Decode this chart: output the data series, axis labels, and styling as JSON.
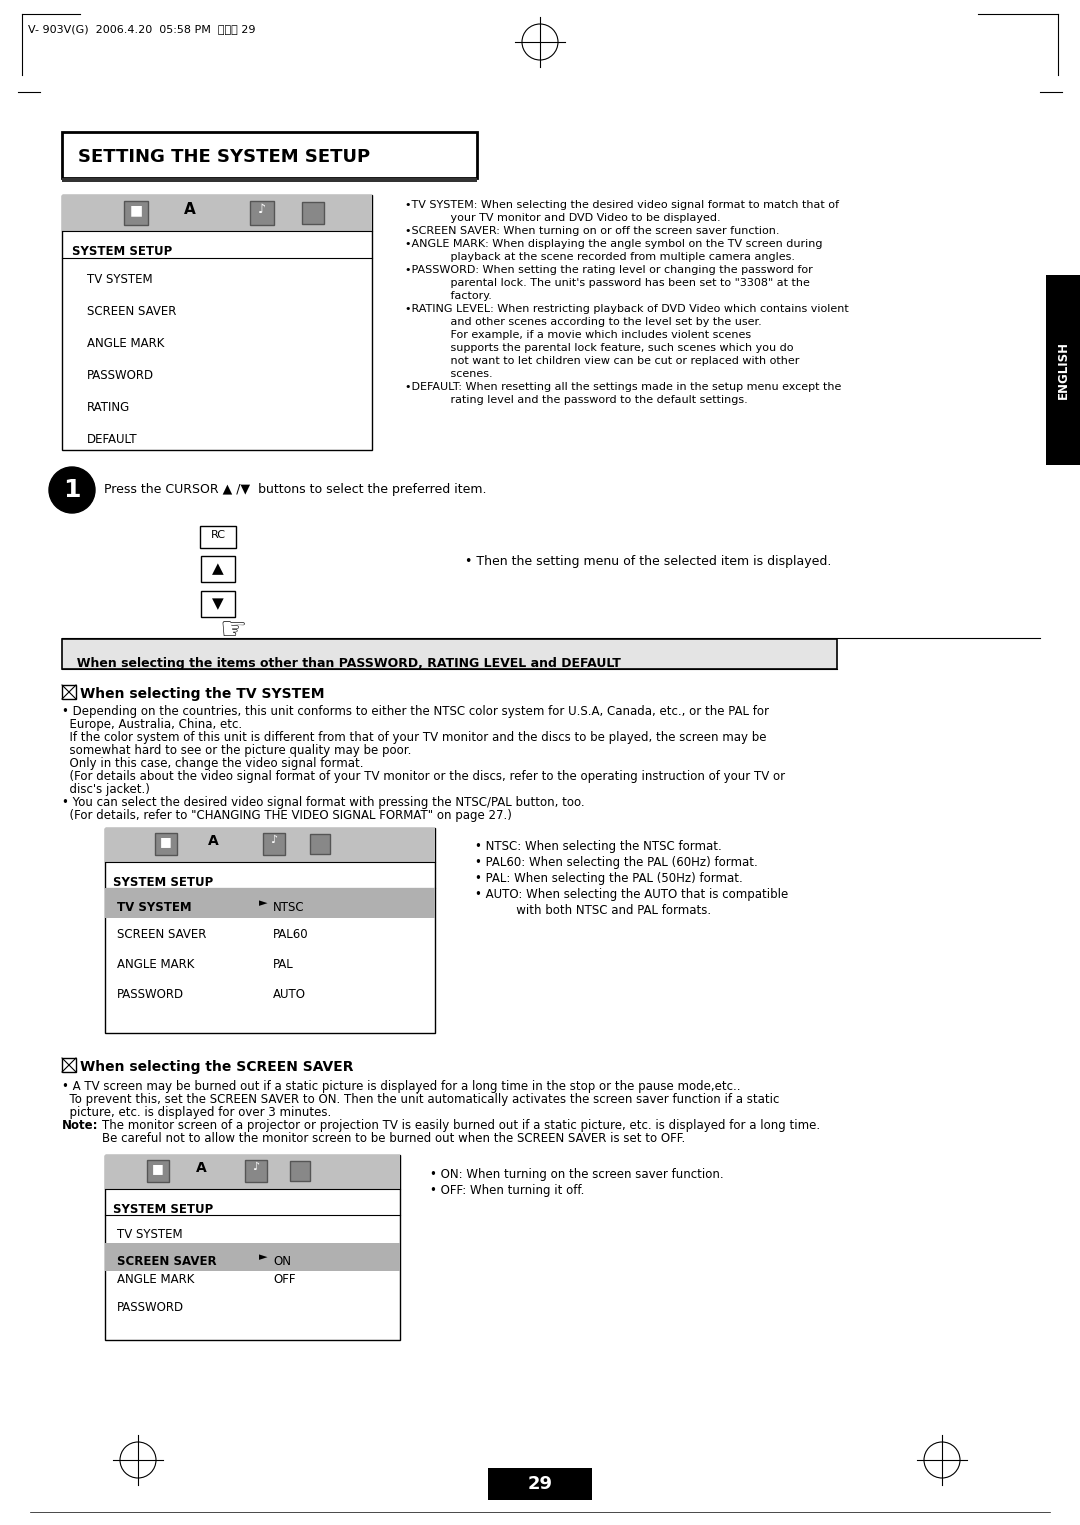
{
  "page_header": "V- 903V(G)  2006.4.20  05:58 PM  페이지 29",
  "main_title": "SETTING THE SYSTEM SETUP",
  "english_tab": "ENGLISH",
  "section1_header": "  When selecting the items other than PASSWORD, RATING LEVEL and DEFAULT",
  "tv_system_heading": "When selecting the TV SYSTEM",
  "screen_saver_heading": "When selecting the SCREEN SAVER",
  "step1_text": "Press the CURSOR ▲ /▼  buttons to select the preferred item.",
  "step1_note": "• Then the setting menu of the selected item is displayed.",
  "tv_system_options": [
    "• NTSC: When selecting the NTSC format.",
    "• PAL60: When selecting the PAL (60Hz) format.",
    "• PAL: When selecting the PAL (50Hz) format.",
    "• AUTO: When selecting the AUTO that is compatible",
    "           with both NTSC and PAL formats."
  ],
  "screen_saver_options": [
    "• ON: When turning on the screen saver function.",
    "• OFF: When turning it off."
  ],
  "page_number": "29",
  "bg_color": "#ffffff"
}
